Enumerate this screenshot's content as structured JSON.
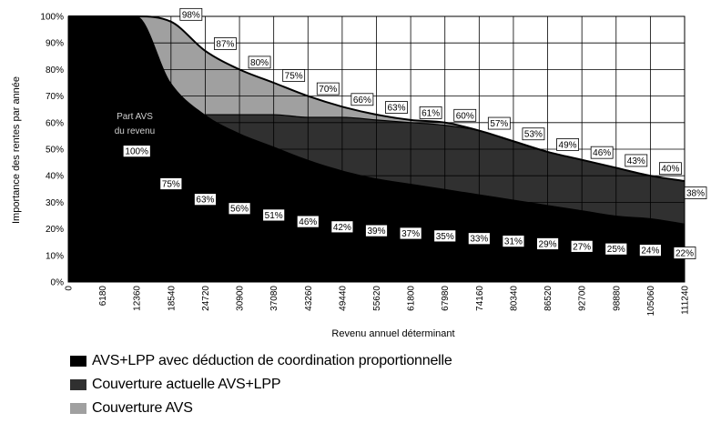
{
  "chart_data": {
    "type": "area",
    "xlabel": "Revenu annuel déterminant",
    "ylabel": "Importance des rentes par année",
    "xlim": [
      0,
      111240
    ],
    "ylim": [
      0,
      100
    ],
    "x": [
      0,
      6180,
      12360,
      18540,
      24720,
      30900,
      37080,
      43260,
      49440,
      55620,
      61800,
      67980,
      74160,
      80340,
      86520,
      92700,
      98880,
      105060,
      111240
    ],
    "x_tick_labels": [
      "0",
      "6180",
      "12360",
      "18540",
      "24720",
      "30900",
      "37080",
      "43260",
      "49440",
      "55620",
      "61800",
      "67980",
      "74160",
      "80340",
      "86520",
      "92700",
      "98880",
      "105060",
      "111240"
    ],
    "y_ticks": [
      0,
      10,
      20,
      30,
      40,
      50,
      60,
      70,
      80,
      90,
      100
    ],
    "y_tick_labels": [
      "0%",
      "10%",
      "20%",
      "30%",
      "40%",
      "50%",
      "60%",
      "70%",
      "80%",
      "90%",
      "100%"
    ],
    "grid": true,
    "legend_position": "bottom",
    "series": [
      {
        "name": "AVS+LPP avec déduction de coordination proportionnelle",
        "color": "#000000",
        "values": [
          100,
          100,
          100,
          75,
          63,
          56,
          51,
          46,
          42,
          39,
          37,
          35,
          33,
          31,
          29,
          27,
          25,
          24,
          22
        ],
        "data_labels": {
          "x": [
            12360,
            18540,
            24720,
            30900,
            37080,
            43260,
            49440,
            55620,
            61800,
            67980,
            74160,
            80340,
            86520,
            92700,
            98880,
            105060,
            111240
          ],
          "text": [
            "100%",
            "75%",
            "63%",
            "56%",
            "51%",
            "46%",
            "42%",
            "39%",
            "37%",
            "35%",
            "33%",
            "31%",
            "29%",
            "27%",
            "25%",
            "24%",
            "22%"
          ]
        }
      },
      {
        "name": "Couverture actuelle AVS+LPP",
        "color": "#303030",
        "x": [
          24720,
          30900,
          37080,
          43260,
          49440,
          55620,
          61800,
          67980,
          74160,
          80340,
          86520,
          92700,
          98880,
          105060,
          111240
        ],
        "values": [
          63,
          63,
          63,
          62,
          62,
          61,
          60,
          59,
          57,
          53,
          49,
          46,
          43,
          40,
          38
        ]
      },
      {
        "name": "Couverture AVS",
        "color": "#a0a0a0",
        "values": [
          100,
          100,
          100,
          98,
          87,
          80,
          75,
          70,
          66,
          63,
          61,
          60,
          57,
          53,
          49,
          46,
          43,
          40,
          38
        ],
        "data_labels": {
          "x": [
            18540,
            24720,
            30900,
            37080,
            43260,
            49440,
            55620,
            61800,
            67980,
            74160,
            80340,
            86520,
            92700,
            98880,
            105060,
            111240
          ],
          "text": [
            "98%",
            "87%",
            "80%",
            "75%",
            "70%",
            "66%",
            "63%",
            "61%",
            "60%",
            "57%",
            "53%",
            "49%",
            "46%",
            "43%",
            "40%",
            "38%"
          ]
        }
      }
    ],
    "annotations": {
      "avs_share_caption": [
        "Part AVS",
        "du revenu"
      ]
    }
  }
}
